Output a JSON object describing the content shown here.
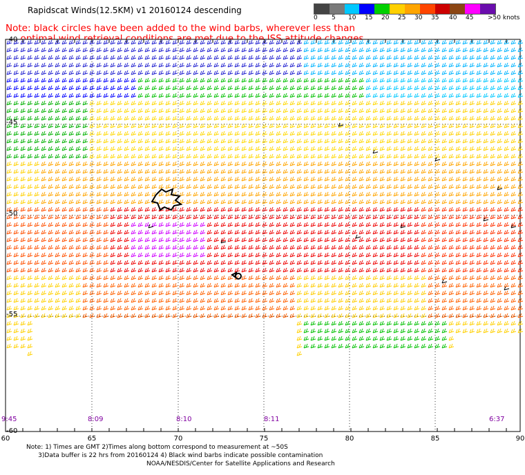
{
  "title": "Rapidscat Winds(12.5KM) v1 20160124 descending",
  "note_line1": "Note: black circles have been added to the wind barbs, wherever less than",
  "note_line2": "     optimal wind retrieval conditions are met due to the ISS attitude changes.",
  "colorbar": {
    "labels": [
      "0",
      "5",
      "10",
      "15",
      "20",
      "25",
      "30",
      "35",
      "40",
      "45",
      ">50 knots"
    ],
    "colors": [
      "#444444",
      "#7a7a7a",
      "#00c8ff",
      "#0000ff",
      "#00d000",
      "#ffd000",
      "#ffa500",
      "#ff4500",
      "#cc0000",
      "#8b4513",
      "#ff00ff",
      "#6a0dad"
    ]
  },
  "map": {
    "lon_ticks": [
      "60",
      "65",
      "70",
      "75",
      "80",
      "85",
      "90"
    ],
    "lat_ticks": [
      "-40",
      "-45",
      "-50",
      "-55",
      "-60"
    ],
    "time_labels": [
      "9:45",
      "8:09",
      "8:10",
      "8:11",
      "6:37"
    ]
  },
  "footnote_line1": "Note: 1) Times are GMT 2)Times along bottom correspond to measurement at ~50S",
  "footnote_line2": "      3)Data buffer is 22 hrs from 20160124 4) Black wind barbs indicate possible contamination",
  "credit": "NOAA/NESDIS/Center for Satellite Applications and Research"
}
